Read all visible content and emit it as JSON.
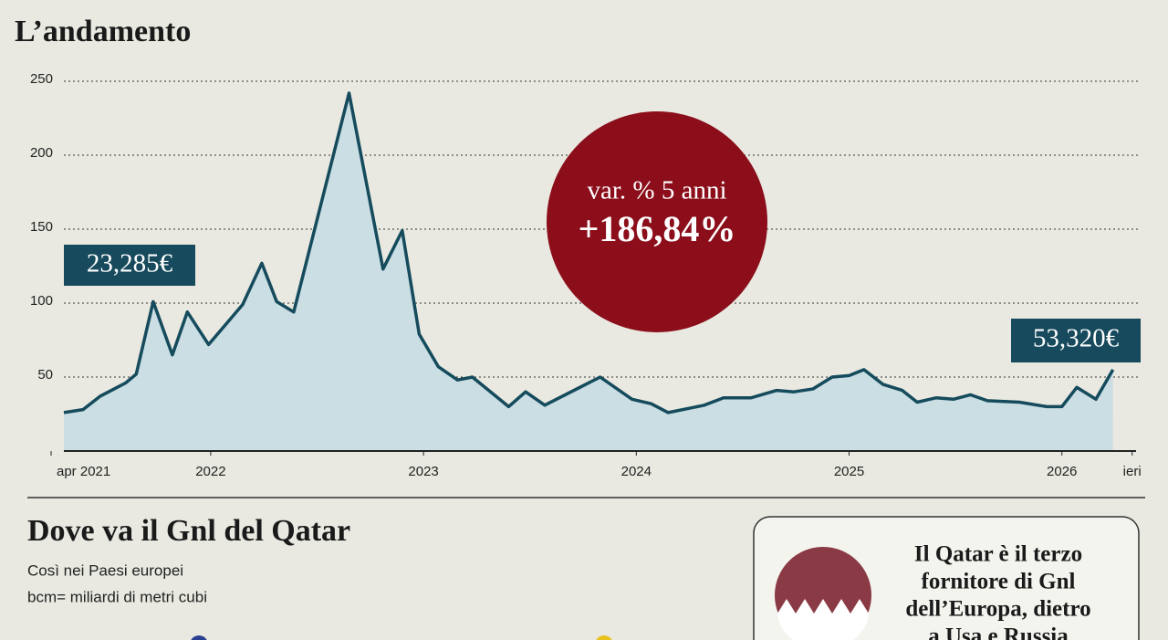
{
  "chart_data": {
    "type": "line",
    "title": "L’andamento",
    "x": [
      2021.31,
      2021.4,
      2021.48,
      2021.6,
      2021.65,
      2021.73,
      2021.82,
      2021.89,
      2021.99,
      2022.15,
      2022.24,
      2022.31,
      2022.39,
      2022.65,
      2022.81,
      2022.9,
      2022.98,
      2023.07,
      2023.16,
      2023.23,
      2023.4,
      2023.48,
      2023.57,
      2023.83,
      2023.98,
      2024.07,
      2024.15,
      2024.32,
      2024.41,
      2024.54,
      2024.66,
      2024.74,
      2024.83,
      2024.92,
      2025.0,
      2025.07,
      2025.16,
      2025.25,
      2025.32,
      2025.41,
      2025.49,
      2025.57,
      2025.65,
      2025.8,
      2025.93,
      2026.0,
      2026.07,
      2026.16,
      2026.24
    ],
    "values": [
      26,
      28,
      37,
      46,
      52,
      101,
      65,
      94,
      72,
      99,
      127,
      101,
      94,
      242,
      123,
      149,
      79,
      57,
      48,
      50,
      30,
      40,
      31,
      50,
      35,
      32,
      26,
      31,
      36,
      36,
      41,
      40,
      42,
      50,
      51,
      55,
      45,
      41,
      33,
      36,
      35,
      38,
      34,
      33,
      30,
      30,
      43,
      35,
      55
    ],
    "color": "#154b5c",
    "xlim": [
      2021.25,
      2026.37
    ],
    "xticks": [
      {
        "value": 2021.25,
        "label": "apr 2021"
      },
      2022,
      2023,
      2024,
      2025,
      2026,
      {
        "value": 2026.33,
        "label": "ieri"
      }
    ],
    "ylim": [
      0,
      250
    ],
    "yticks": [
      50,
      100,
      150,
      200,
      250
    ],
    "grid": true,
    "annotations": [
      {
        "text": "23,285€"
      },
      {
        "text": "53,320€"
      },
      {
        "text": "var. % 5 anni"
      },
      {
        "text": "+186,84%"
      }
    ]
  },
  "section": {
    "title": "Dove va il Gnl del Qatar",
    "subtitle": [
      "Così nei Paesi europei",
      "bcm= miliardi di metri cubi"
    ],
    "callout": [
      "Il Qatar è il terzo",
      "fornitore di Gnl",
      "dell’Europa, dietro",
      "a Usa e Russia"
    ]
  }
}
